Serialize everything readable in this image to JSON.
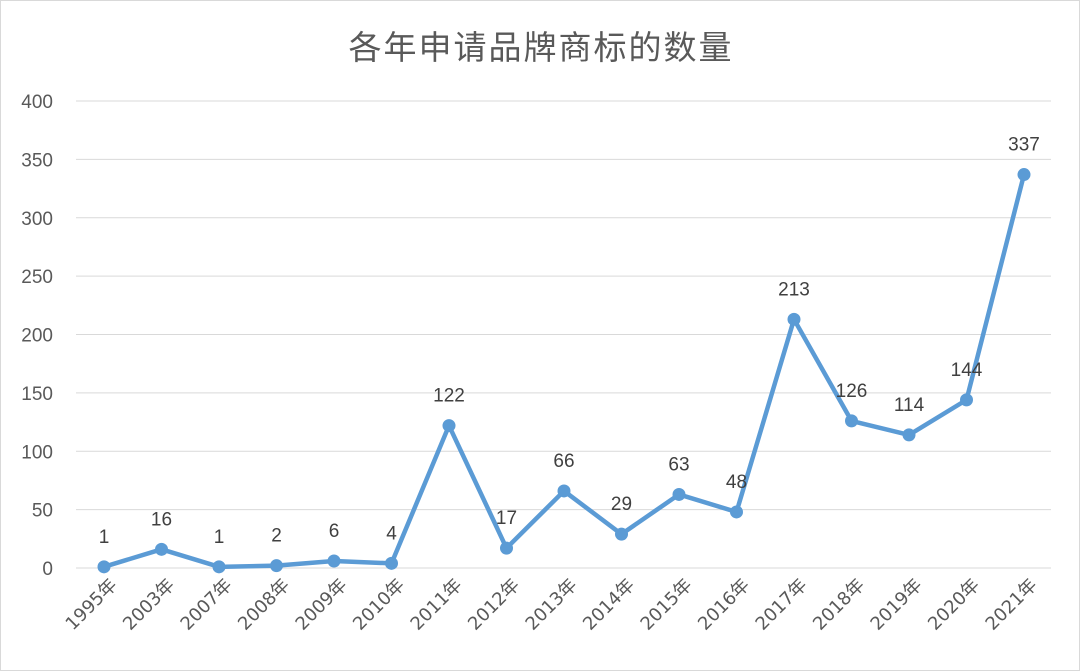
{
  "chart_data": {
    "type": "line",
    "title": "各年申请品牌商标的数量",
    "xlabel": "",
    "ylabel": "",
    "categories": [
      "1995年",
      "2003年",
      "2007年",
      "2008年",
      "2009年",
      "2010年",
      "2011年",
      "2012年",
      "2013年",
      "2014年",
      "2015年",
      "2016年",
      "2017年",
      "2018年",
      "2019年",
      "2020年",
      "2021年"
    ],
    "series": [
      {
        "values": [
          1,
          16,
          1,
          2,
          6,
          4,
          122,
          17,
          66,
          29,
          63,
          48,
          213,
          126,
          114,
          144,
          337
        ]
      }
    ],
    "ylim": [
      0,
      400
    ],
    "yticks": [
      0,
      50,
      100,
      150,
      200,
      250,
      300,
      350,
      400
    ],
    "grid": true,
    "data_labels": true,
    "line_color": "#5b9bd5",
    "grid_color": "#d9d9d9"
  }
}
